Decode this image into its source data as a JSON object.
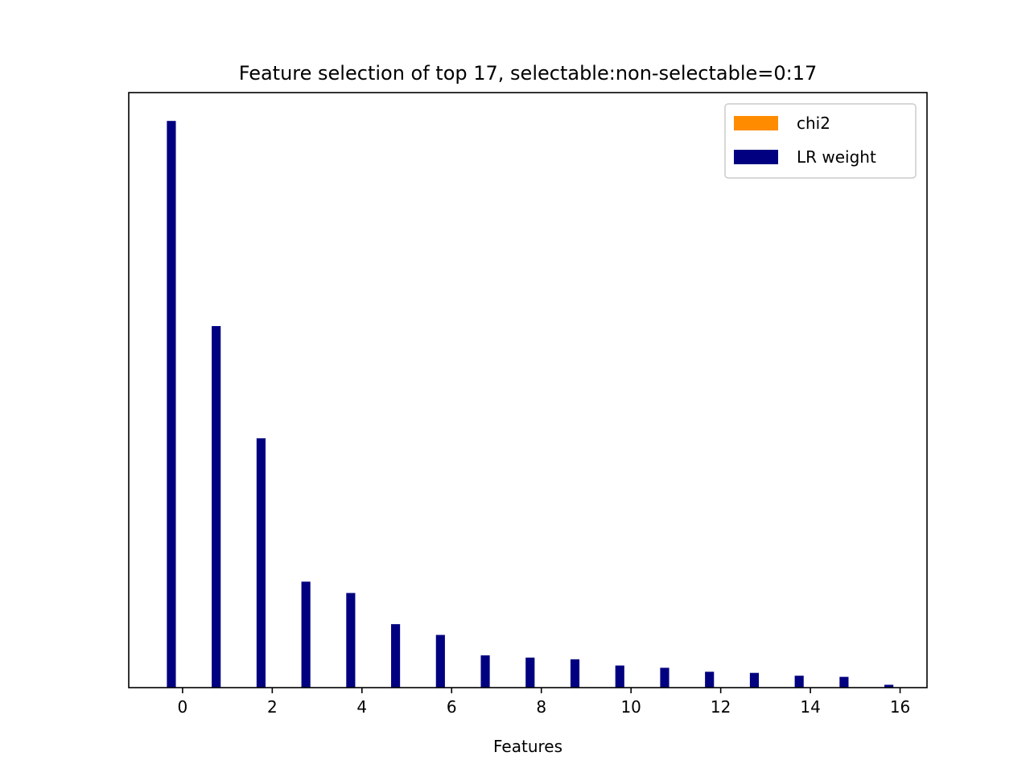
{
  "chart_data": {
    "type": "bar",
    "title": "Feature selection of top 17, selectable:non-selectable=0:17",
    "xlabel": "Features",
    "ylabel": "",
    "x": [
      0,
      1,
      2,
      3,
      4,
      5,
      6,
      7,
      8,
      9,
      10,
      11,
      12,
      13,
      14,
      15,
      16
    ],
    "x_ticks": [
      "0",
      "2",
      "4",
      "6",
      "8",
      "10",
      "12",
      "14",
      "16"
    ],
    "xlim": [
      -1.2,
      16.6
    ],
    "ylim": [
      0,
      1.05
    ],
    "y_ticks_shown": false,
    "series": [
      {
        "name": "chi2",
        "color": "#ff8c00",
        "offset": 0.0,
        "values": [
          0,
          0,
          0,
          0,
          0,
          0,
          0,
          0,
          0,
          0,
          0,
          0,
          0,
          0,
          0,
          0,
          0
        ]
      },
      {
        "name": "LR weight",
        "color": "#000080",
        "offset": -0.25,
        "values": [
          1.0,
          0.638,
          0.44,
          0.187,
          0.167,
          0.112,
          0.093,
          0.057,
          0.053,
          0.05,
          0.039,
          0.035,
          0.028,
          0.026,
          0.021,
          0.019,
          0.005
        ]
      }
    ],
    "bar_width": 0.2,
    "grid": false,
    "legend": "top-right"
  }
}
